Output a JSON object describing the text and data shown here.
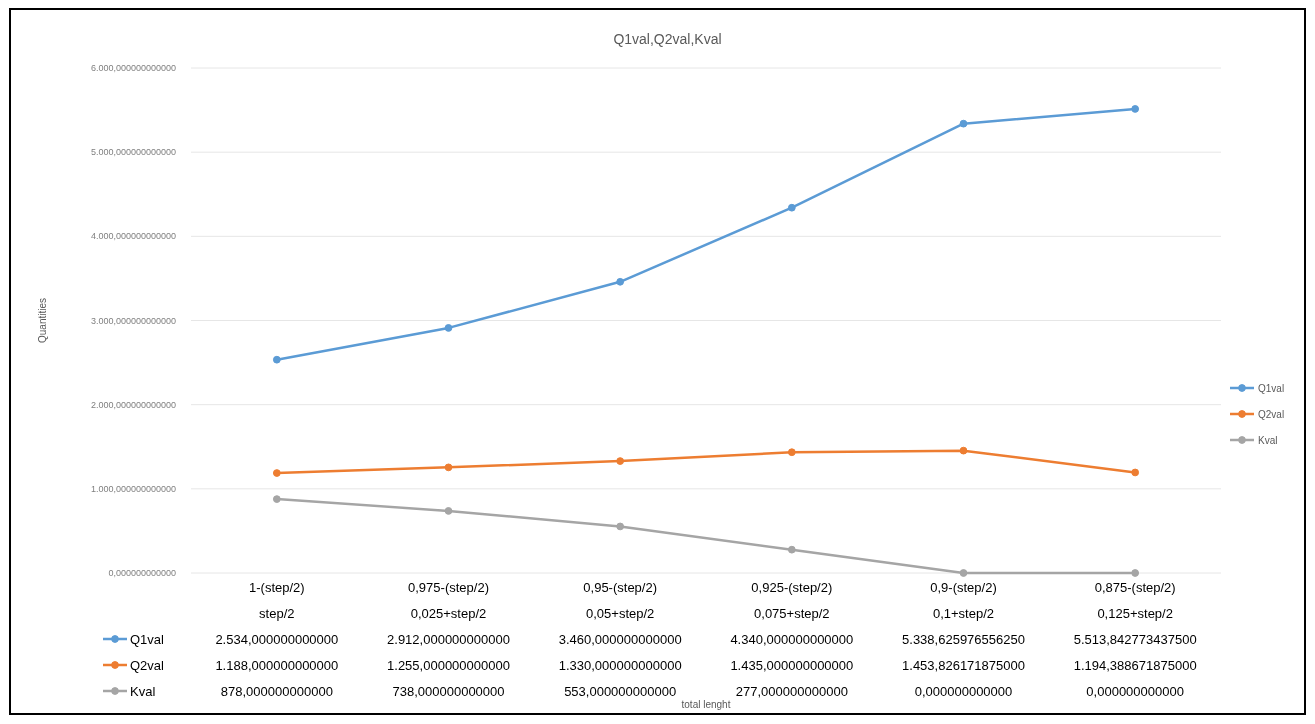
{
  "chart_data": {
    "type": "line",
    "title": "Q1val,Q2val,Kval",
    "annotations": [
      "total lenght"
    ],
    "ylabel": "Quantities",
    "categories": [
      "1-(step/2)\nstep/2",
      "0,975-(step/2)\n0,025+step/2",
      "0,95-(step/2)\n0,05+step/2",
      "0,925-(step/2)\n0,075+step/2",
      "0,9-(step/2)\n0,1+step/2",
      "0,875-(step/2)\n0,125+step/2"
    ],
    "series": [
      {
        "name": "Q1val",
        "color": "#5b9bd5",
        "values": [
          2534,
          2912,
          3460,
          4340,
          5338.62597655625,
          5513.8427734375
        ],
        "value_labels": [
          "2.534,000000000000",
          "2.912,000000000000",
          "3.460,000000000000",
          "4.340,000000000000",
          "5.338,625976556250",
          "5.513,842773437500"
        ]
      },
      {
        "name": "Q2val",
        "color": "#ed7d31",
        "values": [
          1188,
          1255,
          1330,
          1435,
          1453.826171875,
          1194.388671875
        ],
        "value_labels": [
          "1.188,000000000000",
          "1.255,000000000000",
          "1.330,000000000000",
          "1.435,000000000000",
          "1.453,826171875000",
          "1.194,388671875000"
        ]
      },
      {
        "name": "Kval",
        "color": "#a5a5a5",
        "values": [
          878,
          738,
          553,
          277,
          0,
          0
        ],
        "value_labels": [
          "878,000000000000",
          "738,000000000000",
          "553,000000000000",
          "277,000000000000",
          "0,000000000000",
          "0,000000000000"
        ]
      }
    ],
    "ylim": [
      0,
      6000
    ],
    "yticks": [
      {
        "value": 0,
        "label": "0,000000000000"
      },
      {
        "value": 1000,
        "label": "1.000,000000000000"
      },
      {
        "value": 2000,
        "label": "2.000,000000000000"
      },
      {
        "value": 3000,
        "label": "3.000,000000000000"
      },
      {
        "value": 4000,
        "label": "4.000,000000000000"
      },
      {
        "value": 5000,
        "label": "5.000,000000000000"
      },
      {
        "value": 6000,
        "label": "6.000,000000000000"
      }
    ],
    "grid": "y",
    "legend": "right",
    "marker": "circle",
    "line_style": "solid"
  }
}
